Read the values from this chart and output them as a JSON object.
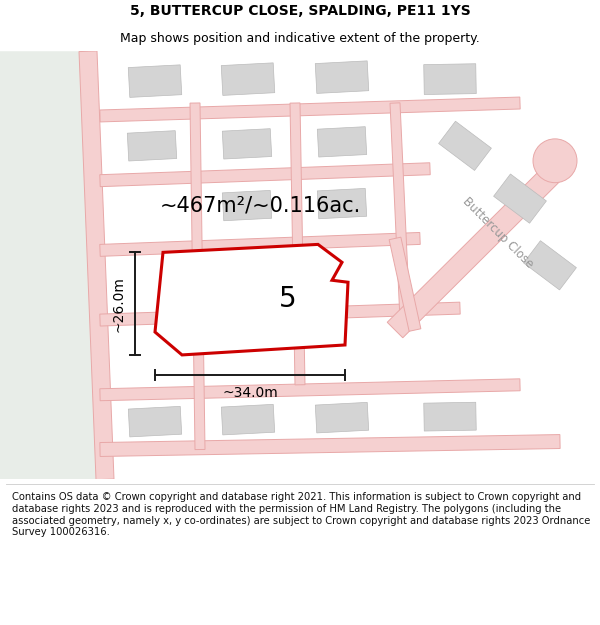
{
  "title": "5, BUTTERCUP CLOSE, SPALDING, PE11 1YS",
  "subtitle": "Map shows position and indicative extent of the property.",
  "area_label": "~467m²/~0.116ac.",
  "plot_number": "5",
  "width_label": "~34.0m",
  "height_label": "~26.0m",
  "footer_text": "Contains OS data © Crown copyright and database right 2021. This information is subject to Crown copyright and database rights 2023 and is reproduced with the permission of HM Land Registry. The polygons (including the associated geometry, namely x, y co-ordinates) are subject to Crown copyright and database rights 2023 Ordnance Survey 100026316.",
  "bg_map_color": "#f2f4f1",
  "bg_left_color": "#e8ede8",
  "road_fill_color": "#f5d0d0",
  "road_edge_color": "#e8a8a8",
  "building_color": "#d4d4d4",
  "building_edge_color": "#bbbbbb",
  "plot_fill_color": "#ffffff",
  "plot_edge_color": "#cc0000",
  "measure_color": "#1a1a1a",
  "title_fontsize": 10,
  "subtitle_fontsize": 9,
  "area_fontsize": 15,
  "plot_num_fontsize": 20,
  "measure_fontsize": 10,
  "footer_fontsize": 7.2,
  "road_label_color": "#999999"
}
